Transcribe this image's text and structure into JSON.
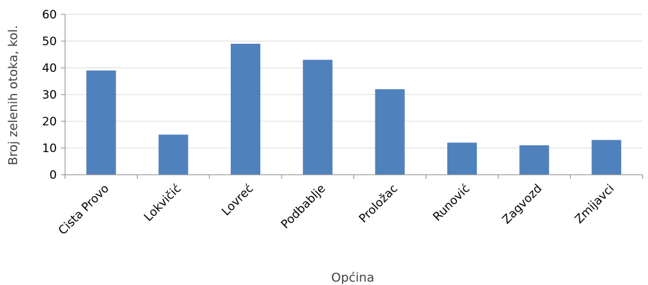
{
  "chart_data": {
    "type": "bar",
    "title": "",
    "xlabel": "Općina",
    "ylabel": "Broj zelenih otoka, kol.",
    "categories": [
      "Cista Provo",
      "Lokvičić",
      "Lovreć",
      "Podbablje",
      "Proložac",
      "Runović",
      "Zagvozd",
      "Zmijavci"
    ],
    "values": [
      39,
      15,
      49,
      43,
      32,
      12,
      11,
      13
    ],
    "ylim": [
      0,
      60
    ],
    "yticks": [
      0,
      10,
      20,
      30,
      40,
      50,
      60
    ],
    "grid": "horizontal",
    "legend": "none",
    "colors": {
      "bar": "#4f81bd",
      "axis": "#868686",
      "grid": "#d9d9d9",
      "text": "#000000"
    }
  }
}
